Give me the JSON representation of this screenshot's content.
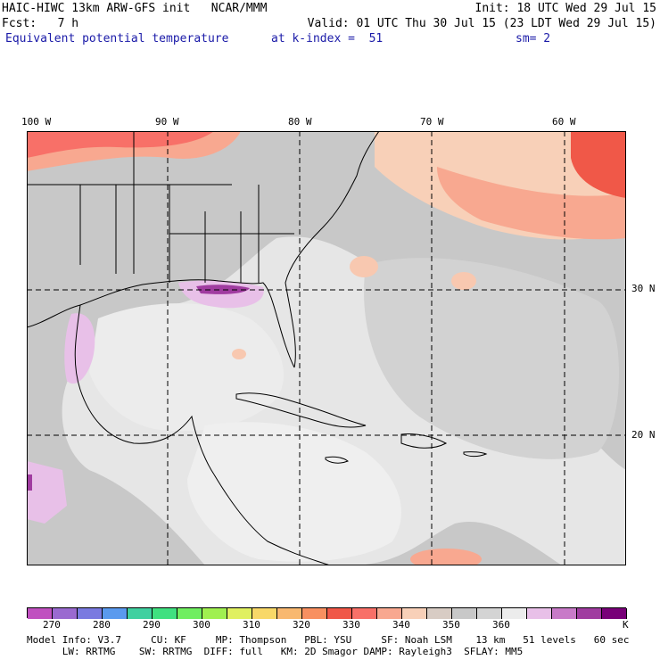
{
  "header": {
    "line1_left": "HAIC-HIWC 13km ARW-GFS init   NCAR/MMM",
    "line1_right": "Init: 18 UTC Wed 29 Jul 15",
    "line2_left": "Fcst:   7 h",
    "line2_right": "Valid: 01 UTC Thu 30 Jul 15 (23 LDT Wed 29 Jul 15)",
    "field": "Equivalent potential temperature",
    "level": "at k-index =  51",
    "smooth": "sm= 2"
  },
  "map": {
    "lon_labels": [
      "100 W",
      "90 W",
      "80 W",
      "70 W",
      "60 W"
    ],
    "lat_labels": [
      "30 N",
      "20 N"
    ]
  },
  "colorbar": {
    "ticks": [
      "270",
      "280",
      "290",
      "300",
      "310",
      "320",
      "330",
      "340",
      "350",
      "360"
    ],
    "unit": "K",
    "colors": [
      "#c050c0",
      "#9a6ad0",
      "#7a7ae0",
      "#5a9aee",
      "#40d0a0",
      "#40e080",
      "#70ee60",
      "#a0f050",
      "#e0f060",
      "#f8d868",
      "#f8b870",
      "#f89060",
      "#f05848",
      "#f87068",
      "#f8a890",
      "#f8d0b8",
      "#d8ccc4",
      "#c8c8c8",
      "#d4d4d4",
      "#ececec",
      "#e8c0e8",
      "#c87ac8",
      "#a03ca0",
      "#780078"
    ]
  },
  "footer": {
    "line1": "Model Info: V3.7     CU: KF     MP: Thompson   PBL: YSU     SF: Noah LSM    13 km   51 levels   60 sec",
    "line2": "      LW: RRTMG    SW: RRTMG  DIFF: full   KM: 2D Smagor DAMP: Rayleigh3  SFLAY: MM5"
  }
}
